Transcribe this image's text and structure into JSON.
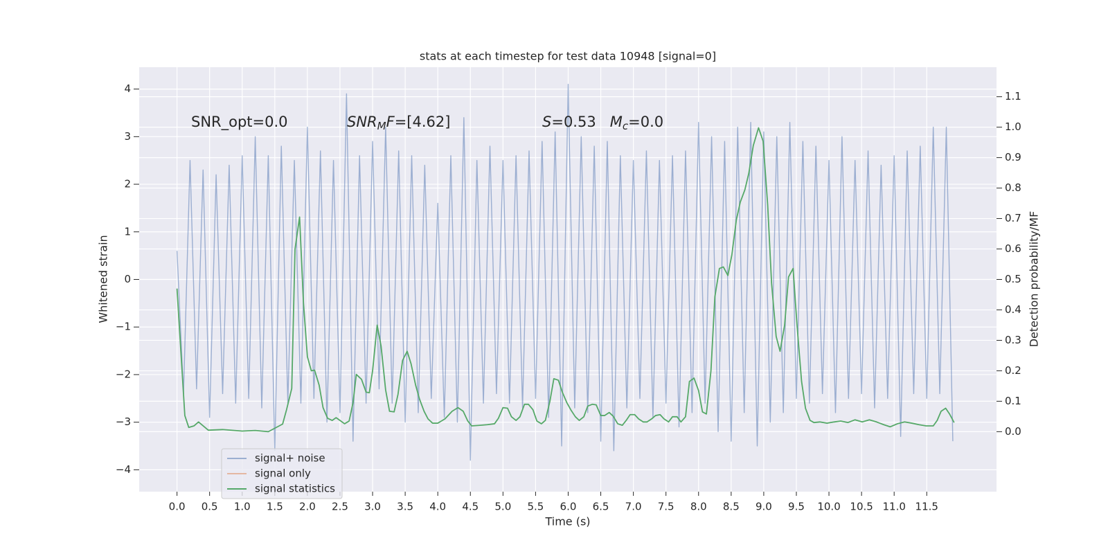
{
  "chart_data": {
    "type": "line",
    "title": "stats at each timestep for test data 10948 [signal=0]",
    "x_label": "Time (s)",
    "y_label": "Whitened strain",
    "y2_label": "Detection probability/MF",
    "annotations": [
      {
        "parts": [
          {
            "text": "SNR_opt=0.0"
          }
        ]
      },
      {
        "parts": [
          {
            "text": "SNR",
            "italic": true
          },
          {
            "text": "M",
            "italic": true,
            "sub": true
          },
          {
            "text": "F",
            "italic": true
          },
          {
            "text": "=[4.62]"
          }
        ]
      },
      {
        "parts": [
          {
            "text": "S",
            "italic": true
          },
          {
            "text": "=0.53   "
          },
          {
            "text": "M",
            "italic": true
          },
          {
            "text": "c",
            "italic": true,
            "sub": true
          },
          {
            "text": "=0.0"
          }
        ]
      }
    ],
    "xlim": [
      -0.58,
      12.57
    ],
    "ylim": [
      -4.46,
      4.46
    ],
    "y2lim": [
      -0.197,
      1.197
    ],
    "xticks": [
      {
        "value": 0,
        "label": "0.0"
      },
      0.5,
      {
        "value": 1,
        "label": "1.0"
      },
      1.5,
      {
        "value": 2,
        "label": "2.0"
      },
      2.5,
      {
        "value": 3,
        "label": "3.0"
      },
      3.5,
      {
        "value": 4,
        "label": "4.0"
      },
      4.5,
      {
        "value": 5,
        "label": "5.0"
      },
      5.5,
      {
        "value": 6,
        "label": "6.0"
      },
      6.5,
      {
        "value": 7,
        "label": "7.0"
      },
      7.5,
      {
        "value": 8,
        "label": "8.0"
      },
      8.5,
      {
        "value": 9,
        "label": "9.0"
      },
      9.5,
      {
        "value": 10,
        "label": "10.0"
      },
      10.5,
      {
        "value": 11,
        "label": "11.0"
      },
      11.5
    ],
    "yticks": [
      {
        "value": -4,
        "label": "−4"
      },
      {
        "value": -3,
        "label": "−3"
      },
      {
        "value": -2,
        "label": "−2"
      },
      {
        "value": -1,
        "label": "−1"
      },
      0,
      1,
      2,
      3,
      4
    ],
    "y2ticks": [
      {
        "value": 0,
        "label": "0.0"
      },
      0.1,
      0.2,
      0.3,
      0.4,
      0.5,
      0.6,
      0.7,
      0.8,
      0.9,
      {
        "value": 1,
        "label": "1.0"
      },
      1.1
    ],
    "grid": true,
    "legend_position": "lower left",
    "series": [
      {
        "name": "signal+ noise",
        "color": "#4c72b0",
        "opacity": 0.5,
        "x": [
          0,
          0.1,
          0.2,
          0.3,
          0.4,
          0.5,
          0.6,
          0.7,
          0.8,
          0.9,
          1,
          1.1,
          1.2,
          1.3,
          1.4,
          1.5,
          1.6,
          1.7,
          1.8,
          1.9,
          2,
          2.1,
          2.2,
          2.3,
          2.4,
          2.5,
          2.6,
          2.7,
          2.8,
          2.9,
          3,
          3.1,
          3.2,
          3.3,
          3.4,
          3.5,
          3.6,
          3.7,
          3.8,
          3.9,
          4,
          4.1,
          4.2,
          4.3,
          4.4,
          4.5,
          4.6,
          4.7,
          4.8,
          4.9,
          5,
          5.1,
          5.2,
          5.3,
          5.4,
          5.5,
          5.6,
          5.7,
          5.8,
          5.9,
          6,
          6.1,
          6.2,
          6.3,
          6.4,
          6.5,
          6.6,
          6.7,
          6.8,
          6.9,
          7,
          7.1,
          7.2,
          7.3,
          7.4,
          7.5,
          7.6,
          7.7,
          7.8,
          7.9,
          8,
          8.1,
          8.2,
          8.3,
          8.4,
          8.5,
          8.6,
          8.7,
          8.8,
          8.9,
          9,
          9.1,
          9.2,
          9.3,
          9.4,
          9.5,
          9.6,
          9.7,
          9.8,
          9.9,
          10,
          10.1,
          10.2,
          10.3,
          10.4,
          10.5,
          10.6,
          10.7,
          10.8,
          10.9,
          11,
          11.1,
          11.2,
          11.3,
          11.4,
          11.5,
          11.6,
          11.7,
          11.8,
          11.9
        ],
        "values": [
          0.6,
          -2.4,
          2.5,
          -2.3,
          2.3,
          -2.9,
          2.2,
          -2.4,
          2.4,
          -2.6,
          2.6,
          -2.5,
          3.0,
          -2.7,
          2.6,
          -3.6,
          2.8,
          -2.6,
          2.5,
          -2.6,
          3.2,
          -2.5,
          2.7,
          -3.0,
          2.5,
          -2.8,
          3.9,
          -3.4,
          2.6,
          -2.6,
          2.9,
          -2.3,
          3.2,
          -2.6,
          2.7,
          -3.0,
          2.6,
          -2.8,
          2.4,
          -2.5,
          1.6,
          -2.9,
          2.6,
          -3.0,
          3.4,
          -3.8,
          2.5,
          -2.6,
          2.8,
          -2.4,
          2.5,
          -2.6,
          2.6,
          -2.7,
          2.7,
          -2.5,
          2.9,
          -2.9,
          3.1,
          -3.5,
          4.1,
          -2.7,
          3.0,
          -2.8,
          2.8,
          -3.4,
          2.9,
          -3.6,
          2.6,
          -2.7,
          2.5,
          -2.5,
          2.7,
          -2.9,
          2.5,
          -2.6,
          2.6,
          -3.1,
          2.7,
          -2.8,
          3.3,
          -2.6,
          3.0,
          -3.2,
          2.9,
          -3.4,
          3.2,
          -2.8,
          3.3,
          -3.5,
          3.1,
          -3.0,
          3.0,
          -2.8,
          3.3,
          -2.5,
          2.9,
          -2.6,
          2.8,
          -2.4,
          2.5,
          -2.8,
          3.0,
          -2.5,
          2.5,
          -2.4,
          2.7,
          -2.7,
          2.4,
          -2.5,
          2.6,
          -3.3,
          2.7,
          -2.4,
          2.8,
          -2.5,
          3.2,
          -2.4,
          3.2,
          -3.4
        ]
      },
      {
        "name": "signal only",
        "color": "#dd8452",
        "opacity": 0.5,
        "x": [],
        "values": []
      },
      {
        "name": "signal statistics",
        "color": "#55a868",
        "opacity": 1,
        "axis": "y2",
        "x": [
          0,
          0.12,
          0.18,
          0.26,
          0.33,
          0.48,
          0.7,
          1.0,
          1.2,
          1.4,
          1.62,
          1.68,
          1.76,
          1.81,
          1.88,
          1.94,
          2.0,
          2.06,
          2.11,
          2.18,
          2.24,
          2.31,
          2.38,
          2.44,
          2.5,
          2.57,
          2.64,
          2.7,
          2.75,
          2.83,
          2.9,
          2.95,
          3.0,
          3.07,
          3.13,
          3.2,
          3.26,
          3.33,
          3.39,
          3.46,
          3.53,
          3.59,
          3.66,
          3.72,
          3.79,
          3.85,
          3.92,
          4.0,
          4.11,
          4.22,
          4.31,
          4.39,
          4.46,
          4.52,
          4.65,
          4.76,
          4.87,
          4.93,
          5.0,
          5.07,
          5.13,
          5.2,
          5.26,
          5.33,
          5.39,
          5.46,
          5.52,
          5.59,
          5.65,
          5.72,
          5.78,
          5.85,
          5.91,
          5.98,
          6.04,
          6.11,
          6.17,
          6.24,
          6.3,
          6.37,
          6.43,
          6.5,
          6.56,
          6.63,
          6.69,
          6.76,
          6.83,
          6.89,
          6.95,
          7.02,
          7.08,
          7.15,
          7.21,
          7.28,
          7.34,
          7.41,
          7.47,
          7.54,
          7.6,
          7.67,
          7.73,
          7.8,
          7.86,
          7.93,
          8.0,
          8.06,
          8.12,
          8.19,
          8.25,
          8.32,
          8.38,
          8.45,
          8.51,
          8.58,
          8.64,
          8.71,
          8.77,
          8.84,
          8.92,
          8.99,
          9.06,
          9.12,
          9.19,
          9.25,
          9.32,
          9.38,
          9.45,
          9.51,
          9.58,
          9.64,
          9.71,
          9.77,
          9.86,
          9.97,
          10.08,
          10.18,
          10.29,
          10.4,
          10.51,
          10.62,
          10.73,
          10.84,
          10.94,
          11.05,
          11.16,
          11.27,
          11.38,
          11.49,
          11.6,
          11.66,
          11.72,
          11.79,
          11.85,
          11.92
        ],
        "values": [
          0.47,
          0.053,
          0.014,
          0.019,
          0.032,
          0.005,
          0.007,
          0.002,
          0.004,
          0.0,
          0.025,
          0.072,
          0.142,
          0.599,
          0.705,
          0.422,
          0.246,
          0.2,
          0.202,
          0.153,
          0.079,
          0.044,
          0.037,
          0.046,
          0.037,
          0.026,
          0.035,
          0.095,
          0.188,
          0.172,
          0.13,
          0.128,
          0.2,
          0.35,
          0.281,
          0.137,
          0.067,
          0.065,
          0.123,
          0.234,
          0.264,
          0.223,
          0.153,
          0.107,
          0.067,
          0.042,
          0.028,
          0.028,
          0.042,
          0.067,
          0.079,
          0.067,
          0.035,
          0.019,
          0.021,
          0.023,
          0.026,
          0.044,
          0.079,
          0.077,
          0.049,
          0.037,
          0.049,
          0.09,
          0.09,
          0.072,
          0.035,
          0.026,
          0.037,
          0.1,
          0.174,
          0.169,
          0.13,
          0.095,
          0.072,
          0.049,
          0.037,
          0.049,
          0.084,
          0.09,
          0.088,
          0.053,
          0.053,
          0.063,
          0.051,
          0.026,
          0.021,
          0.037,
          0.056,
          0.056,
          0.042,
          0.032,
          0.032,
          0.042,
          0.053,
          0.056,
          0.042,
          0.032,
          0.049,
          0.049,
          0.032,
          0.049,
          0.165,
          0.176,
          0.135,
          0.065,
          0.058,
          0.2,
          0.443,
          0.536,
          0.541,
          0.513,
          0.58,
          0.696,
          0.754,
          0.794,
          0.848,
          0.94,
          0.998,
          0.954,
          0.745,
          0.487,
          0.313,
          0.264,
          0.35,
          0.508,
          0.536,
          0.35,
          0.165,
          0.077,
          0.037,
          0.03,
          0.032,
          0.028,
          0.032,
          0.035,
          0.03,
          0.039,
          0.032,
          0.039,
          0.032,
          0.023,
          0.016,
          0.026,
          0.032,
          0.028,
          0.023,
          0.019,
          0.019,
          0.037,
          0.067,
          0.077,
          0.058,
          0.03
        ]
      }
    ]
  }
}
